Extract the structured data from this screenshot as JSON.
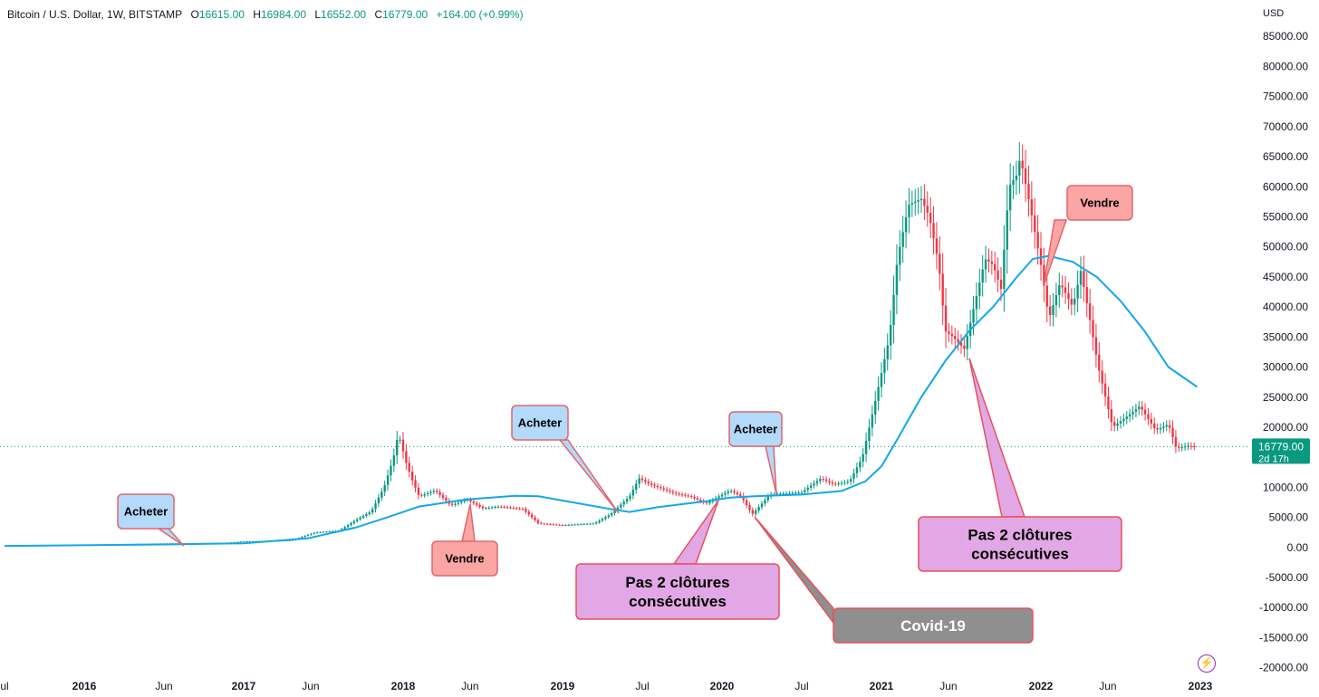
{
  "header": {
    "symbol": "Bitcoin / U.S. Dollar, 1W, BITSTAMP",
    "o_label": "O",
    "o_value": "16615.00",
    "h_label": "H",
    "h_value": "16984.00",
    "l_label": "L",
    "l_value": "16552.00",
    "c_label": "C",
    "c_value": "16779.00",
    "change": "+164.00 (+0.99%)"
  },
  "currency_label": "USD",
  "price_tag": {
    "price": "16779.00",
    "countdown": "2d 17h"
  },
  "colors": {
    "up": "#089981",
    "down": "#f23645",
    "ma": "#13a7e8",
    "grid": "#ffffff"
  },
  "icons": {
    "bolt": "lightning-icon"
  },
  "chart_data": {
    "type": "candlestick",
    "timeframe": "1W",
    "y_axis": {
      "range": [
        -20000,
        85000
      ],
      "ticks": [
        "85000.00",
        "80000.00",
        "75000.00",
        "70000.00",
        "65000.00",
        "60000.00",
        "55000.00",
        "50000.00",
        "45000.00",
        "40000.00",
        "35000.00",
        "30000.00",
        "25000.00",
        "20000.00",
        "10000.00",
        "5000.00",
        "0.00",
        "-5000.00",
        "-10000.00",
        "-15000.00",
        "-20000.00"
      ]
    },
    "x_axis": {
      "ticks": [
        {
          "label": "ul",
          "t": 2015.5,
          "bold": false
        },
        {
          "label": "2016",
          "t": 2016.0,
          "bold": true
        },
        {
          "label": "Jun",
          "t": 2016.5,
          "bold": false
        },
        {
          "label": "2017",
          "t": 2017.0,
          "bold": true
        },
        {
          "label": "Jun",
          "t": 2017.42,
          "bold": false
        },
        {
          "label": "2018",
          "t": 2018.0,
          "bold": true
        },
        {
          "label": "Jun",
          "t": 2018.42,
          "bold": false
        },
        {
          "label": "2019",
          "t": 2019.0,
          "bold": true
        },
        {
          "label": "Jul",
          "t": 2019.5,
          "bold": false
        },
        {
          "label": "2020",
          "t": 2020.0,
          "bold": true
        },
        {
          "label": "Jul",
          "t": 2020.5,
          "bold": false
        },
        {
          "label": "2021",
          "t": 2021.0,
          "bold": true
        },
        {
          "label": "Jun",
          "t": 2021.42,
          "bold": false
        },
        {
          "label": "2022",
          "t": 2022.0,
          "bold": true
        },
        {
          "label": "Jun",
          "t": 2022.42,
          "bold": false
        },
        {
          "label": "2023",
          "t": 2023.0,
          "bold": true
        }
      ]
    },
    "price_anchors": [
      [
        2015.5,
        280
      ],
      [
        2015.9,
        420
      ],
      [
        2016.45,
        650
      ],
      [
        2016.9,
        780
      ],
      [
        2017.0,
        1000
      ],
      [
        2017.3,
        1200
      ],
      [
        2017.45,
        2500
      ],
      [
        2017.6,
        2800
      ],
      [
        2017.7,
        4500
      ],
      [
        2017.8,
        6000
      ],
      [
        2017.88,
        10000
      ],
      [
        2017.94,
        15000
      ],
      [
        2017.97,
        19000
      ],
      [
        2018.02,
        14000
      ],
      [
        2018.06,
        11000
      ],
      [
        2018.1,
        8500
      ],
      [
        2018.2,
        9500
      ],
      [
        2018.3,
        7000
      ],
      [
        2018.4,
        8000
      ],
      [
        2018.5,
        6500
      ],
      [
        2018.6,
        6800
      ],
      [
        2018.75,
        6400
      ],
      [
        2018.85,
        4000
      ],
      [
        2019.0,
        3700
      ],
      [
        2019.2,
        4000
      ],
      [
        2019.3,
        5500
      ],
      [
        2019.42,
        8500
      ],
      [
        2019.48,
        11500
      ],
      [
        2019.55,
        10500
      ],
      [
        2019.7,
        9000
      ],
      [
        2019.8,
        8500
      ],
      [
        2019.9,
        7300
      ],
      [
        2020.05,
        9500
      ],
      [
        2020.12,
        8500
      ],
      [
        2020.19,
        5500
      ],
      [
        2020.3,
        8800
      ],
      [
        2020.5,
        9200
      ],
      [
        2020.62,
        11500
      ],
      [
        2020.7,
        10500
      ],
      [
        2020.8,
        11000
      ],
      [
        2020.88,
        15000
      ],
      [
        2020.95,
        23000
      ],
      [
        2021.0,
        29000
      ],
      [
        2021.05,
        35000
      ],
      [
        2021.1,
        48000
      ],
      [
        2021.17,
        57000
      ],
      [
        2021.25,
        58000
      ],
      [
        2021.3,
        55000
      ],
      [
        2021.36,
        47000
      ],
      [
        2021.4,
        36000
      ],
      [
        2021.45,
        35000
      ],
      [
        2021.52,
        33000
      ],
      [
        2021.58,
        40000
      ],
      [
        2021.65,
        48000
      ],
      [
        2021.7,
        47000
      ],
      [
        2021.75,
        43000
      ],
      [
        2021.8,
        60000
      ],
      [
        2021.85,
        62000
      ],
      [
        2021.87,
        65000
      ],
      [
        2021.93,
        57000
      ],
      [
        2022.0,
        47000
      ],
      [
        2022.05,
        38000
      ],
      [
        2022.12,
        44000
      ],
      [
        2022.2,
        40000
      ],
      [
        2022.25,
        46000
      ],
      [
        2022.3,
        39000
      ],
      [
        2022.36,
        30000
      ],
      [
        2022.45,
        20000
      ],
      [
        2022.55,
        22000
      ],
      [
        2022.62,
        23500
      ],
      [
        2022.72,
        19500
      ],
      [
        2022.8,
        20500
      ],
      [
        2022.85,
        16500
      ],
      [
        2022.92,
        16900
      ],
      [
        2022.98,
        16779
      ]
    ],
    "ma_anchors": [
      [
        2015.5,
        250
      ],
      [
        2016.5,
        500
      ],
      [
        2017.0,
        700
      ],
      [
        2017.4,
        1500
      ],
      [
        2017.7,
        3300
      ],
      [
        2017.9,
        5000
      ],
      [
        2018.1,
        6800
      ],
      [
        2018.4,
        8000
      ],
      [
        2018.7,
        8600
      ],
      [
        2018.85,
        8500
      ],
      [
        2019.0,
        7800
      ],
      [
        2019.3,
        6400
      ],
      [
        2019.42,
        5900
      ],
      [
        2019.6,
        6700
      ],
      [
        2019.9,
        7700
      ],
      [
        2020.05,
        8300
      ],
      [
        2020.2,
        8500
      ],
      [
        2020.5,
        8800
      ],
      [
        2020.75,
        9400
      ],
      [
        2020.9,
        11000
      ],
      [
        2021.0,
        13500
      ],
      [
        2021.1,
        18000
      ],
      [
        2021.25,
        25000
      ],
      [
        2021.4,
        31000
      ],
      [
        2021.55,
        36000
      ],
      [
        2021.7,
        40000
      ],
      [
        2021.85,
        45000
      ],
      [
        2021.95,
        48000
      ],
      [
        2022.05,
        48500
      ],
      [
        2022.2,
        47500
      ],
      [
        2022.35,
        45000
      ],
      [
        2022.5,
        41000
      ],
      [
        2022.65,
        36000
      ],
      [
        2022.8,
        30000
      ],
      [
        2022.98,
        26700
      ]
    ]
  },
  "annotations": [
    {
      "key": "a1",
      "text": "Acheter",
      "type": "buy"
    },
    {
      "key": "a2",
      "text": "Vendre",
      "type": "sell"
    },
    {
      "key": "a3",
      "text": "Acheter",
      "type": "buy"
    },
    {
      "key": "a4",
      "text": "Pas 2 clôtures consécutives",
      "type": "note"
    },
    {
      "key": "a5",
      "text": "Acheter",
      "type": "buy"
    },
    {
      "key": "a6",
      "text": "Covid-19",
      "type": "event"
    },
    {
      "key": "a7",
      "text": "Pas 2 clôtures consécutives",
      "type": "note"
    },
    {
      "key": "a8",
      "text": "Vendre",
      "type": "sell"
    }
  ]
}
